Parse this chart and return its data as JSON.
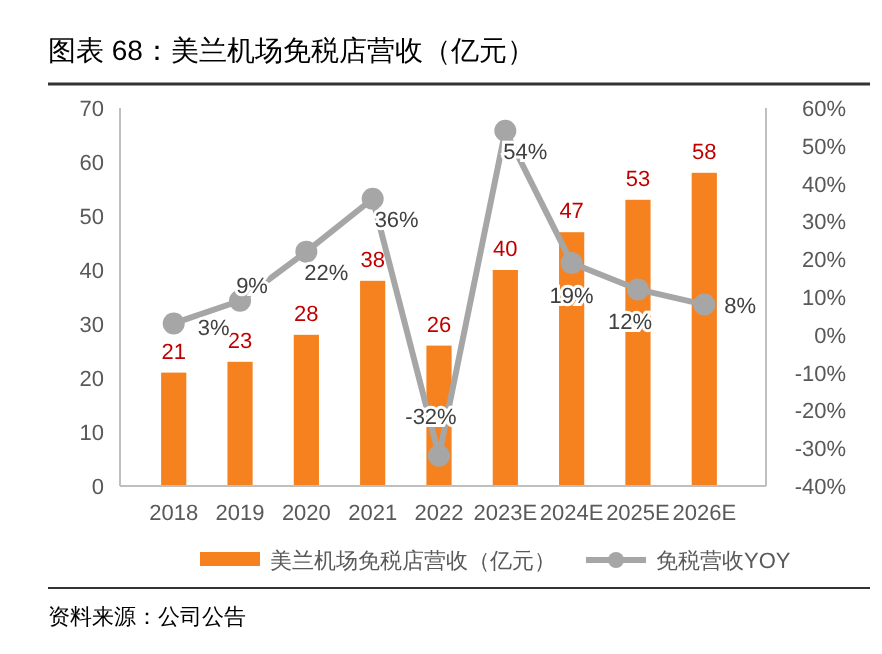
{
  "chart_data": {
    "type": "bar",
    "title": "图表 68：美兰机场免税店营收（亿元）",
    "categories": [
      "2018",
      "2019",
      "2020",
      "2021",
      "2022",
      "2023E",
      "2024E",
      "2025E",
      "2026E"
    ],
    "series": [
      {
        "name": "美兰机场免税店营收（亿元）",
        "color": "#f5821f",
        "values": [
          21,
          23,
          28,
          38,
          26,
          40,
          47,
          53,
          58
        ]
      },
      {
        "name": "免税营收YOY",
        "type": "line",
        "axis": "y2",
        "color": "#a6a6a6",
        "marker": "circle",
        "values": [
          3,
          9,
          22,
          36,
          -32,
          54,
          19,
          12,
          8
        ],
        "value_labels": [
          "3%",
          "9%",
          "22%",
          "36%",
          "-32%",
          "54%",
          "19%",
          "12%",
          "8%"
        ]
      }
    ],
    "ylim": [
      0,
      70
    ],
    "yticks": [
      0,
      10,
      20,
      30,
      40,
      50,
      60,
      70
    ],
    "y2lim": [
      -40,
      60
    ],
    "y2ticks": [
      {
        "value": -40,
        "label": "-40%"
      },
      {
        "value": -30,
        "label": "-30%"
      },
      {
        "value": -20,
        "label": "-20%"
      },
      {
        "value": -10,
        "label": "-10%"
      },
      {
        "value": 0,
        "label": "0%"
      },
      {
        "value": 10,
        "label": "10%"
      },
      {
        "value": 20,
        "label": "20%"
      },
      {
        "value": 30,
        "label": "30%"
      },
      {
        "value": 40,
        "label": "40%"
      },
      {
        "value": 50,
        "label": "50%"
      },
      {
        "value": 60,
        "label": "60%"
      }
    ],
    "data_labels": true,
    "legend": "bottom",
    "annotations": [
      "资料来源：公司公告"
    ]
  }
}
